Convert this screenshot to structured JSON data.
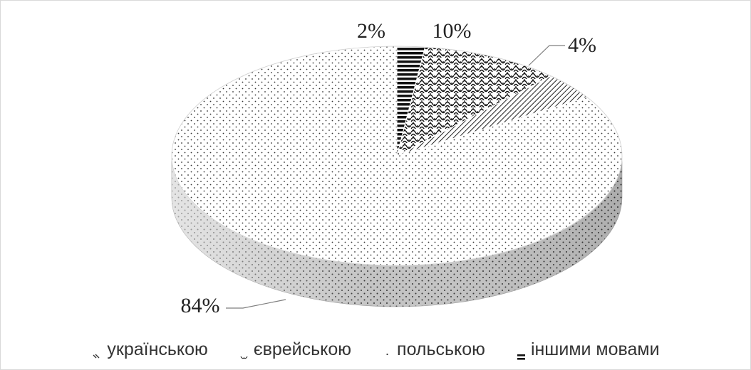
{
  "colors": {
    "background": "#ffffff",
    "border": "#d9d9d9",
    "side_shading": "#bdbdbd",
    "label_text": "#222222",
    "leader_line": "#7f7f7f"
  },
  "chart_data": {
    "type": "pie",
    "title": "",
    "three_d": true,
    "legend_position": "bottom",
    "categories": [
      "українською",
      "єврейською",
      "польською",
      "іншими мовами"
    ],
    "values": [
      4,
      10,
      84,
      2
    ],
    "labels": [
      "4%",
      "10%",
      "84%",
      "2%"
    ],
    "patterns": [
      "diagonal-stripes",
      "wave-lattice",
      "fine-dots",
      "horizontal-bars"
    ]
  }
}
